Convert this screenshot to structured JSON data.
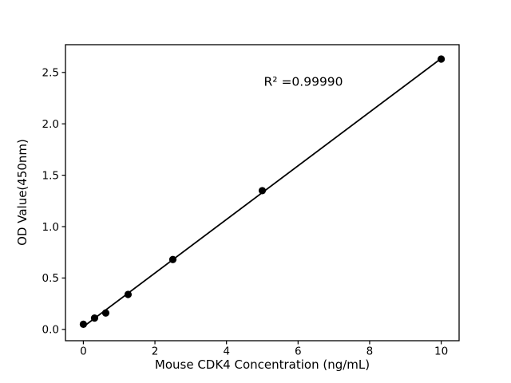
{
  "figure": {
    "background_color": "#ffffff",
    "foreground_color": "#000000"
  },
  "chart_data": {
    "type": "scatter",
    "title": "",
    "xlabel": "Mouse CDK4 Concentration (ng/mL)",
    "ylabel": "OD Value(450nm)",
    "annotation": {
      "text": "R² =0.99990",
      "x": 6.15,
      "y": 2.41
    },
    "x": [
      0,
      0.3125,
      0.625,
      1.25,
      2.5,
      5,
      10
    ],
    "y": [
      0.05,
      0.11,
      0.16,
      0.34,
      0.68,
      1.35,
      2.63
    ],
    "fit_line": {
      "slope": 0.261,
      "intercept": 0.026,
      "x_start": 0,
      "x_end": 10,
      "r_squared": 0.9999
    },
    "xticks": {
      "values": [
        0,
        2,
        4,
        6,
        8,
        10
      ],
      "labels": [
        "0",
        "2",
        "4",
        "6",
        "8",
        "10"
      ]
    },
    "yticks": {
      "values": [
        0,
        0.5,
        1,
        1.5,
        2,
        2.5
      ],
      "labels": [
        "0.0",
        "0.5",
        "1.0",
        "1.5",
        "2.0",
        "2.5"
      ]
    },
    "xlim": [
      -0.5,
      10.5
    ],
    "ylim": [
      -0.11,
      2.77
    ],
    "grid": false,
    "legend": null,
    "marker_color": "#000000",
    "line_color": "#000000",
    "marker_size_px": 4.6
  }
}
